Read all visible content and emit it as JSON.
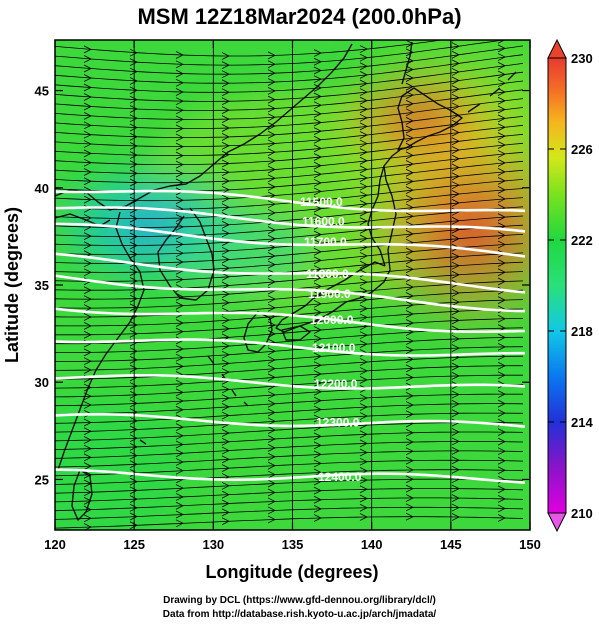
{
  "title": "MSM 12Z18Mar2024 (200.0hPa)",
  "map": {
    "x_axis": {
      "label": "Longitude (degrees)",
      "min": 120,
      "max": 150,
      "ticks": [
        "120",
        "125",
        "130",
        "135",
        "140",
        "145",
        "150"
      ]
    },
    "y_axis": {
      "label": "Latitude  (degrees)",
      "min": 22.4,
      "max": 47.6,
      "ticks": [
        "25",
        "30",
        "35",
        "40",
        "45"
      ]
    },
    "field": "temperature (K), shaded",
    "overlay": "streamlines of wind, white height contours"
  },
  "contours": [
    {
      "value": 11500,
      "label": "11500.0",
      "lat_west": 40.0,
      "lat_east": 38.6
    },
    {
      "value": 11600,
      "label": "11600.0",
      "lat_west": 39.0,
      "lat_east": 37.6
    },
    {
      "value": 11700,
      "label": "11700.0",
      "lat_west": 38.0,
      "lat_east": 36.5
    },
    {
      "value": 11800,
      "label": "11800.0",
      "lat_west": 36.4,
      "lat_east": 34.8
    },
    {
      "value": 11900,
      "label": "11900.0",
      "lat_west": 35.4,
      "lat_east": 33.8
    },
    {
      "value": 12000,
      "label": "12000.0",
      "lat_west": 33.9,
      "lat_east": 32.6
    },
    {
      "value": 12100,
      "label": "12100.0",
      "lat_west": 32.3,
      "lat_east": 31.3
    },
    {
      "value": 12200,
      "label": "12200.0",
      "lat_west": 30.3,
      "lat_east": 29.6
    },
    {
      "value": 12300,
      "label": "12300.0",
      "lat_west": 28.2,
      "lat_east": 27.7
    },
    {
      "value": 12400,
      "label": "12400.0",
      "lat_west": 25.3,
      "lat_east": 25.0
    }
  ],
  "colorbar": {
    "min": 210,
    "max": 230,
    "ticks": [
      "210",
      "214",
      "218",
      "222",
      "226",
      "230"
    ],
    "colors": [
      "#e000e0",
      "#8a14c8",
      "#2230d8",
      "#0a78f0",
      "#12c8e6",
      "#2ae07a",
      "#20d840",
      "#7ae21e",
      "#d2e81a",
      "#f6b41e",
      "#f46e26",
      "#e83a30"
    ]
  },
  "credits": {
    "line1": "Drawing by DCL (https://www.gfd-dennou.org/library/dcl/)",
    "line2": "Data from http://database.rish.kyoto-u.ac.jp/arch/jmadata/"
  }
}
